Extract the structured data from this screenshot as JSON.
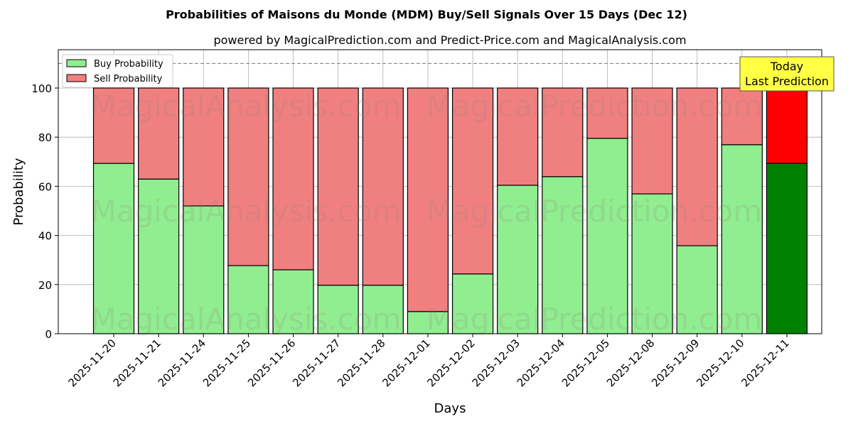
{
  "chart_data": {
    "type": "bar",
    "stacked": true,
    "title": "Probabilities of Maisons du Monde (MDM) Buy/Sell Signals Over 15 Days (Dec 12)",
    "subtitle": "powered by MagicalPrediction.com and Predict-Price.com and MagicalAnalysis.com",
    "xlabel": "Days",
    "ylabel": "Probability",
    "ylim": [
      0,
      115.6
    ],
    "yticks": [
      0,
      20,
      40,
      60,
      80,
      100
    ],
    "grid": true,
    "legend": {
      "placement": "top-left",
      "entries": [
        "Buy Probability",
        "Sell Probability"
      ]
    },
    "categories": [
      "2025-11-20",
      "2025-11-21",
      "2025-11-24",
      "2025-11-25",
      "2025-11-26",
      "2025-11-27",
      "2025-11-28",
      "2025-12-01",
      "2025-12-02",
      "2025-12-03",
      "2025-12-04",
      "2025-12-05",
      "2025-12-08",
      "2025-12-09",
      "2025-12-10",
      "2025-12-11"
    ],
    "series": [
      {
        "name": "Buy Probability",
        "values": [
          69.3,
          62.9,
          52.0,
          27.7,
          26.0,
          19.7,
          19.7,
          9.0,
          24.3,
          60.4,
          63.9,
          79.5,
          56.9,
          35.8,
          76.9,
          69.3
        ]
      },
      {
        "name": "Sell Probability",
        "values": [
          30.7,
          37.1,
          48.0,
          72.3,
          74.0,
          80.3,
          80.3,
          91.0,
          75.7,
          39.6,
          36.1,
          20.5,
          43.1,
          64.2,
          23.1,
          30.7
        ]
      }
    ],
    "colors": {
      "buy": "#90ee90",
      "sell": "#f08080",
      "today_buy": "#008000",
      "today_sell": "#ff0000",
      "annotation_bg": "#ffff44"
    },
    "reference_line": 110,
    "annotation": {
      "line1": "Today",
      "line2": "Last Prediction"
    },
    "watermarks": [
      "MagicalAnalysis.com",
      "MagicalPrediction.com"
    ]
  }
}
